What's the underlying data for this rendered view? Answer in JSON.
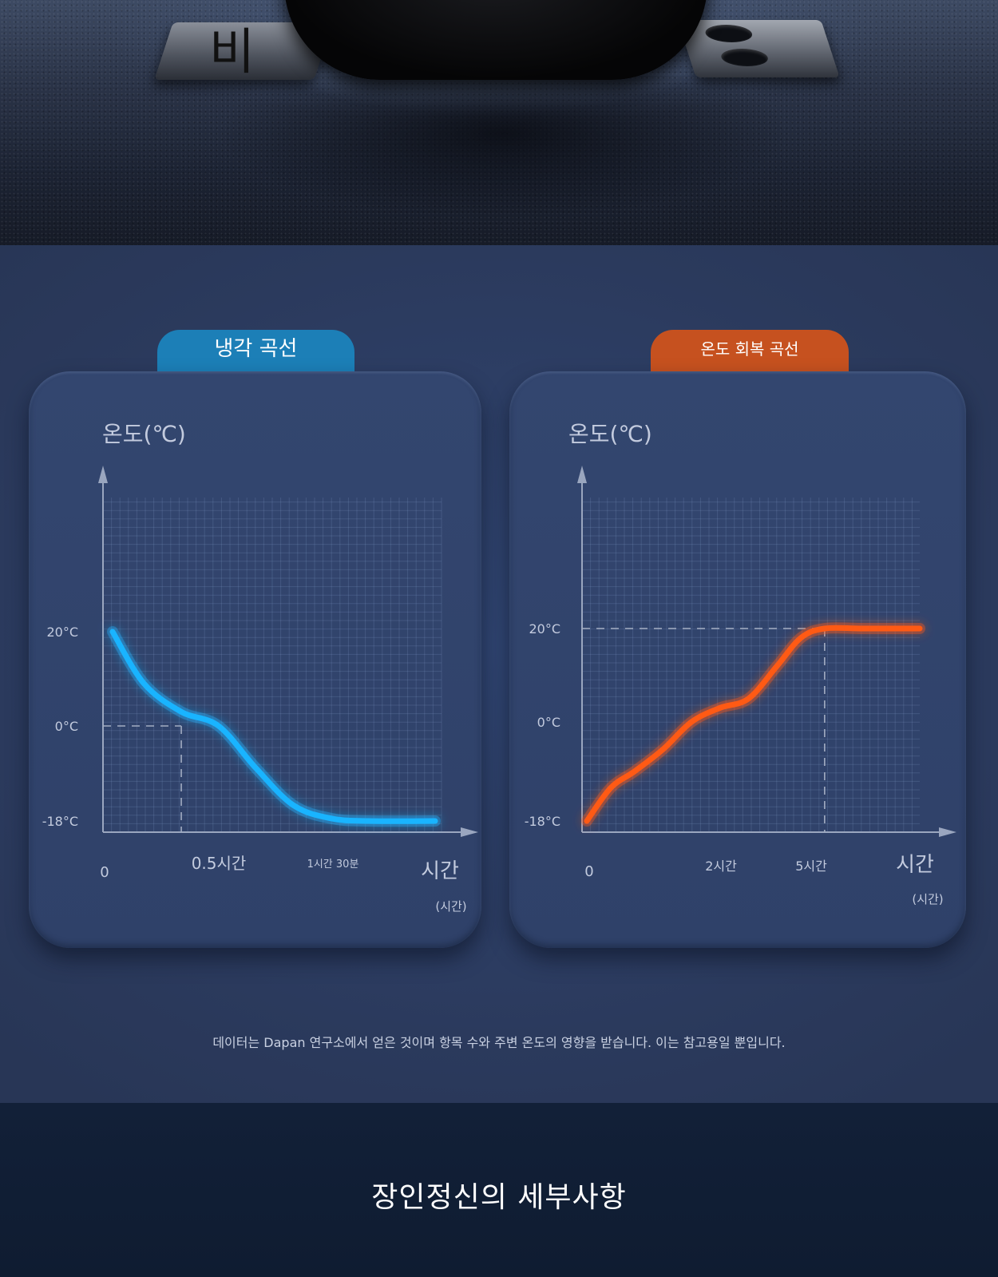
{
  "hero": {
    "text": "비"
  },
  "charts": {
    "cooling": {
      "tab_label": "냉각 곡선",
      "y_title": "온도(℃)",
      "y_ticks": [
        "20°C",
        "0°C",
        "-18°C"
      ],
      "x_ticks": [
        "0",
        "0.5시간",
        "1시간 30분"
      ],
      "x_title": "시간",
      "x_unit": "(시간)"
    },
    "recovery": {
      "tab_label": "온도 회복 곡선",
      "y_title": "온도(℃)",
      "y_ticks": [
        "20°C",
        "0°C",
        "-18°C"
      ],
      "x_ticks": [
        "0",
        "2시간",
        "5시간"
      ],
      "x_title": "시간",
      "x_unit": "(시간)"
    }
  },
  "note": "데이터는 Dapan 연구소에서 얻은 것이며 항목 수와 주변 온도의 영향을 받습니다. 이는 참고용일 뿐입니다.",
  "footer": {
    "title": "장인정신의 세부사항"
  },
  "colors": {
    "cooling": "#19b4ff",
    "recovery": "#ff5a14",
    "cooling_tab": "#1c7fb7",
    "recovery_tab": "#c6511f"
  },
  "chart_data": [
    {
      "type": "line",
      "title": "냉각 곡선",
      "ylabel": "온도(℃)",
      "xlabel": "시간",
      "y_ticks": [
        20,
        0,
        -18
      ],
      "x_tick_labels": [
        "0",
        "0.5시간",
        "1시간 30분"
      ],
      "grid": true,
      "series": [
        {
          "x": [
            0.04,
            0.25,
            0.5,
            0.75,
            1.0,
            1.25,
            1.5,
            1.75,
            2.2
          ],
          "values": [
            20,
            9,
            3,
            0,
            -8,
            -15,
            -17.5,
            -18,
            -18
          ]
        }
      ],
      "reference": {
        "x": 0.5,
        "y": 0
      }
    },
    {
      "type": "line",
      "title": "온도 회복 곡선",
      "ylabel": "온도(℃)",
      "xlabel": "시간",
      "y_ticks": [
        20,
        0,
        -18
      ],
      "x_tick_labels": [
        "0",
        "2시간",
        "5시간"
      ],
      "grid": true,
      "series": [
        {
          "x": [
            0,
            0.5,
            1,
            1.6,
            2.2,
            2.8,
            3.4,
            4.0,
            4.5,
            5.0,
            5.8,
            7.0
          ],
          "values": [
            -18,
            -12,
            -9,
            -5,
            0,
            3,
            5,
            12,
            18,
            20,
            20,
            20
          ]
        }
      ],
      "reference": {
        "x": 5,
        "y": 20
      }
    }
  ]
}
